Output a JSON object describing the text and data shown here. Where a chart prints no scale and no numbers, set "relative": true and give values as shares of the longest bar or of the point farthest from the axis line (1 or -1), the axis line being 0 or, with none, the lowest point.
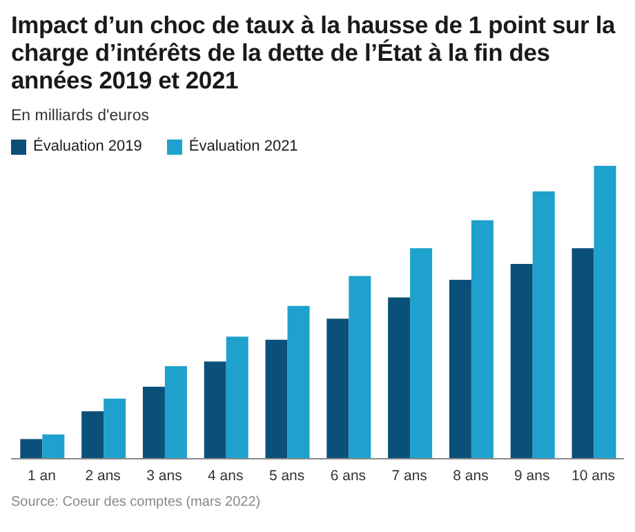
{
  "chart_data": {
    "type": "bar",
    "title": "Impact d’un choc de taux à la hausse de 1 point sur la charge d’intérêts de la dette de l’État à la fin des années 2019 et 2021",
    "subtitle": "En milliards d'euros",
    "categories": [
      "1 an",
      "2 ans",
      "3 ans",
      "4 ans",
      "5 ans",
      "6 ans",
      "7 ans",
      "8 ans",
      "9 ans",
      "10 ans"
    ],
    "series": [
      {
        "name": "Évaluation 2019",
        "color": "#0b5079",
        "values": [
          0.067,
          0.162,
          0.246,
          0.332,
          0.406,
          0.478,
          0.551,
          0.611,
          0.665,
          0.719
        ]
      },
      {
        "name": "Évaluation 2021",
        "color": "#1ea1cd",
        "values": [
          0.083,
          0.205,
          0.316,
          0.417,
          0.522,
          0.624,
          0.719,
          0.814,
          0.913,
          1
        ]
      }
    ],
    "relative": true,
    "legend": "top left",
    "grid": false,
    "annotations": [
      "Source: Coeur des comptes (mars 2022)"
    ]
  }
}
